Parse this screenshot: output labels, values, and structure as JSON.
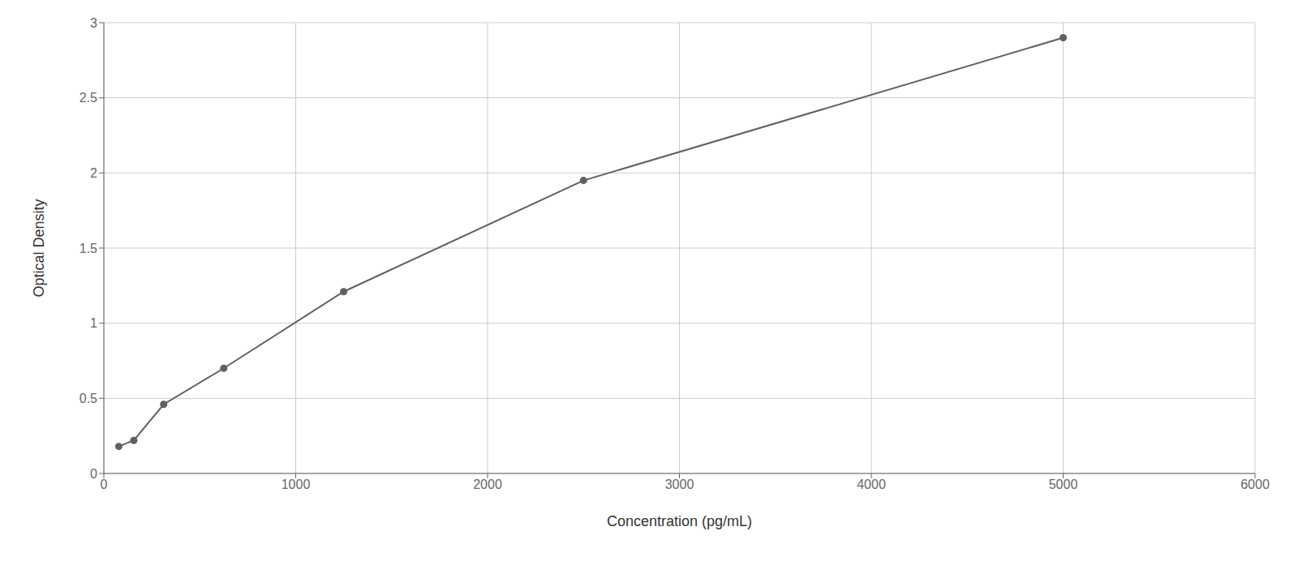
{
  "chart_data": {
    "type": "scatter",
    "x_label": "Concentration (pg/mL)",
    "y_label": "Optical Density",
    "x": [
      78,
      156,
      312,
      625,
      1250,
      2500,
      5000
    ],
    "values": [
      0.18,
      0.22,
      0.46,
      0.7,
      1.21,
      1.95,
      2.9
    ],
    "color": "#606060",
    "marker": "circle",
    "line_style": "solid",
    "xlim": [
      0,
      6000
    ],
    "ylim": [
      0,
      3.0
    ],
    "xticks": [
      0,
      1000,
      2000,
      3000,
      4000,
      5000,
      6000
    ],
    "yticks": [
      0,
      0.5,
      1,
      1.5,
      2,
      2.5,
      3
    ],
    "grid": true
  }
}
